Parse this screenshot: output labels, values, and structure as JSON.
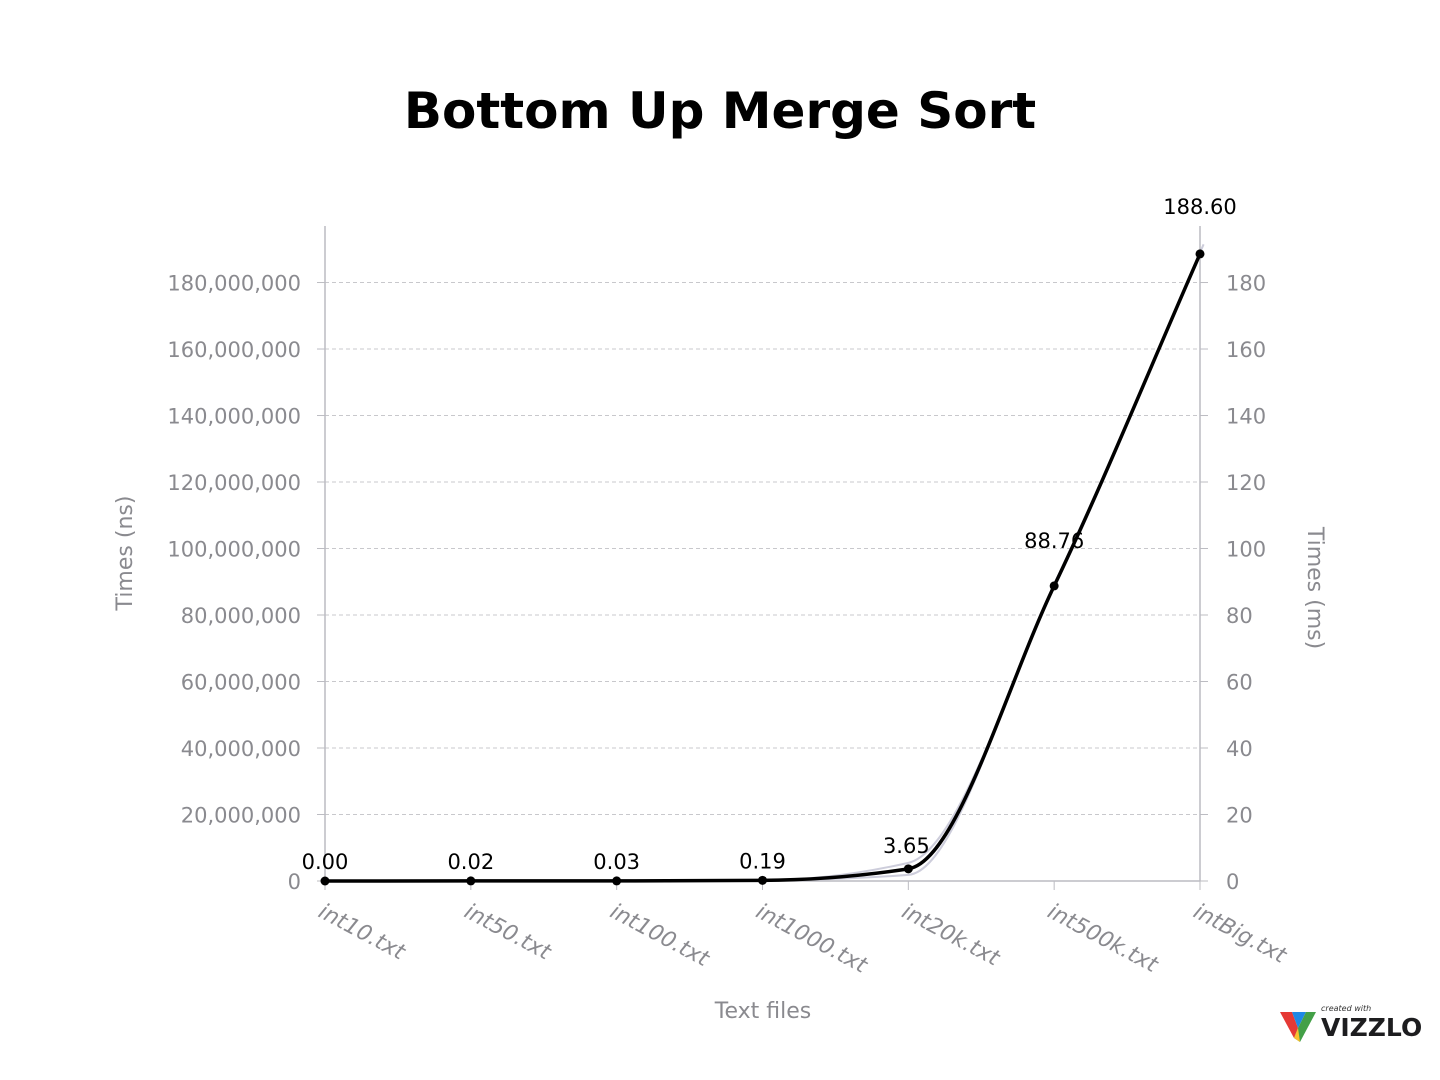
{
  "chart_data": {
    "type": "line",
    "title": "Bottom Up Merge Sort",
    "xlabel": "Text files",
    "ylabel_left": "Times (ns)",
    "ylabel_right": "Times (ms)",
    "categories": [
      "int10.txt",
      "int50.txt",
      "int100.txt",
      "int1000.txt",
      "int20k.txt",
      "int500k.txt",
      "intBig.txt"
    ],
    "series": [
      {
        "values": [
          0.0,
          0.02,
          0.03,
          0.19,
          3.65,
          88.76,
          188.6
        ],
        "data_labels": [
          "0.00",
          "0.02",
          "0.03",
          "0.19",
          "3.65",
          "88.76",
          "188.60"
        ],
        "color": "#000000"
      }
    ],
    "y_left_ticks": [
      "0",
      "20,000,000",
      "40,000,000",
      "60,000,000",
      "80,000,000",
      "100,000,000",
      "120,000,000",
      "140,000,000",
      "160,000,000",
      "180,000,000"
    ],
    "y_right_ticks": [
      "0",
      "20",
      "40",
      "60",
      "80",
      "100",
      "120",
      "140",
      "160",
      "180"
    ],
    "y_left_range": [
      0,
      197000000
    ],
    "y_right_range": [
      0,
      197
    ],
    "grid": true,
    "grid_color": "#c8c8cc",
    "axis_color": "#bcbcc2",
    "band_color": "#b8b8cc"
  },
  "branding": {
    "small_text": "created with",
    "name": "VIZZLO"
  }
}
